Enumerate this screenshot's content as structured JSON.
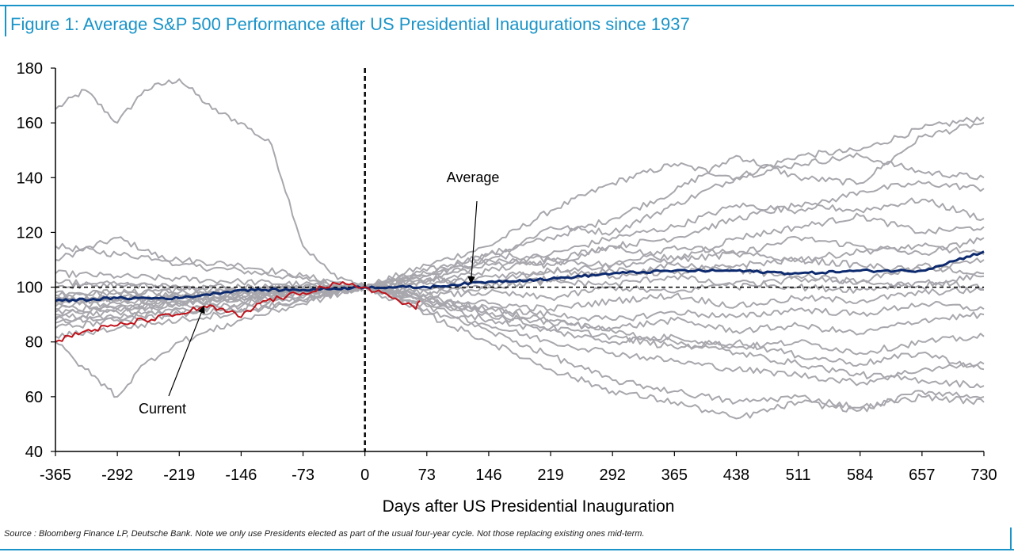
{
  "colors": {
    "accent": "#1a94c8",
    "history": "#a7a7ad",
    "average": "#0d2a6e",
    "current": "#c0131b",
    "axis": "#000000"
  },
  "chart_data": {
    "type": "line",
    "title": "Figure 1: Average S&P 500 Performance after US Presidential Inaugurations since 1937",
    "xlabel": "Days after US Presidential Inauguration",
    "ylabel": "",
    "xlim": [
      -365,
      730
    ],
    "ylim": [
      40,
      180
    ],
    "x_ticks": [
      -365,
      -292,
      -219,
      -146,
      -73,
      0,
      73,
      146,
      219,
      292,
      365,
      438,
      511,
      584,
      657,
      730
    ],
    "y_ticks": [
      40,
      60,
      80,
      100,
      120,
      140,
      160,
      180
    ],
    "reference_lines": [
      {
        "axis": "y",
        "value": 100,
        "style": "dashed"
      },
      {
        "axis": "x",
        "value": 0,
        "style": "dashed"
      }
    ],
    "annotations": [
      {
        "text": "Average",
        "points_to": [
          125,
          101.5
        ]
      },
      {
        "text": "Current",
        "points_to": [
          -190,
          93
        ]
      }
    ],
    "series": [
      {
        "name": "Average",
        "role": "average",
        "x": [
          -365,
          -292,
          -219,
          -146,
          -73,
          0,
          73,
          146,
          219,
          292,
          365,
          438,
          511,
          584,
          657,
          730
        ],
        "y": [
          95,
          96,
          96,
          99,
          99,
          100,
          100,
          102,
          103,
          105,
          106,
          106,
          105,
          106,
          106,
          113
        ]
      },
      {
        "name": "Current",
        "role": "current",
        "x": [
          -365,
          -330,
          -292,
          -260,
          -219,
          -190,
          -160,
          -146,
          -120,
          -100,
          -73,
          -50,
          -30,
          0,
          20,
          40,
          60,
          65
        ],
        "y": [
          80,
          84,
          86,
          88,
          90,
          93,
          91,
          89,
          95,
          96,
          98,
          100,
          101,
          100,
          98,
          95,
          92,
          95
        ]
      },
      {
        "role": "history",
        "x": [
          -365,
          -330,
          -292,
          -260,
          -219,
          -180,
          -146,
          -110,
          -73,
          -40,
          0
        ],
        "y": [
          165,
          172,
          160,
          172,
          176,
          165,
          160,
          152,
          115,
          105,
          100
        ]
      },
      {
        "role": "history",
        "x": [
          -365,
          -292,
          -219,
          -146,
          -73,
          0,
          73,
          146,
          219,
          292,
          365,
          438,
          511,
          584,
          657,
          730
        ],
        "y": [
          110,
          118,
          108,
          106,
          103,
          100,
          108,
          115,
          128,
          138,
          145,
          140,
          148,
          150,
          158,
          162
        ]
      },
      {
        "role": "history",
        "x": [
          -365,
          -292,
          -219,
          -146,
          -73,
          0,
          73,
          146,
          219,
          292,
          365,
          438,
          511,
          584,
          657,
          730
        ],
        "y": [
          115,
          112,
          110,
          108,
          104,
          100,
          106,
          112,
          118,
          125,
          135,
          148,
          140,
          138,
          155,
          160
        ]
      },
      {
        "role": "history",
        "x": [
          -365,
          -292,
          -219,
          -146,
          -73,
          0,
          73,
          146,
          219,
          292,
          365,
          438,
          511,
          584,
          657,
          730
        ],
        "y": [
          105,
          104,
          103,
          102,
          101,
          100,
          104,
          110,
          122,
          120,
          130,
          140,
          145,
          148,
          142,
          140
        ]
      },
      {
        "role": "history",
        "x": [
          -365,
          -292,
          -219,
          -146,
          -73,
          0,
          73,
          146,
          219,
          292,
          365,
          438,
          511,
          584,
          657,
          730
        ],
        "y": [
          95,
          96,
          97,
          98,
          99,
          100,
          103,
          108,
          112,
          118,
          122,
          130,
          128,
          135,
          138,
          136
        ]
      },
      {
        "role": "history",
        "x": [
          -365,
          -292,
          -219,
          -146,
          -73,
          0,
          73,
          146,
          219,
          292,
          365,
          438,
          511,
          584,
          657,
          730
        ],
        "y": [
          90,
          92,
          94,
          96,
          98,
          100,
          102,
          106,
          110,
          115,
          118,
          125,
          130,
          128,
          132,
          125
        ]
      },
      {
        "role": "history",
        "x": [
          -365,
          -292,
          -219,
          -146,
          -73,
          0,
          73,
          146,
          219,
          292,
          365,
          438,
          511,
          584,
          657,
          730
        ],
        "y": [
          100,
          101,
          100,
          99,
          100,
          100,
          104,
          110,
          108,
          115,
          110,
          118,
          122,
          126,
          120,
          122
        ]
      },
      {
        "role": "history",
        "x": [
          -365,
          -292,
          -219,
          -146,
          -73,
          0,
          73,
          146,
          219,
          292,
          365,
          438,
          511,
          584,
          657,
          730
        ],
        "y": [
          85,
          88,
          90,
          92,
          95,
          100,
          105,
          112,
          110,
          108,
          115,
          112,
          118,
          115,
          112,
          118
        ]
      },
      {
        "role": "history",
        "x": [
          -365,
          -292,
          -219,
          -146,
          -73,
          0,
          73,
          146,
          219,
          292,
          365,
          438,
          511,
          584,
          657,
          730
        ],
        "y": [
          92,
          93,
          95,
          96,
          98,
          100,
          101,
          104,
          106,
          108,
          110,
          112,
          110,
          113,
          115,
          112
        ]
      },
      {
        "role": "history",
        "x": [
          -365,
          -292,
          -219,
          -146,
          -73,
          0,
          73,
          146,
          219,
          292,
          365,
          438,
          511,
          584,
          657,
          730
        ],
        "y": [
          88,
          89,
          91,
          93,
          96,
          100,
          99,
          101,
          103,
          106,
          105,
          108,
          110,
          108,
          106,
          110
        ]
      },
      {
        "role": "history",
        "x": [
          -365,
          -292,
          -219,
          -146,
          -73,
          0,
          73,
          146,
          219,
          292,
          365,
          438,
          511,
          584,
          657,
          730
        ],
        "y": [
          96,
          95,
          97,
          98,
          99,
          100,
          98,
          100,
          102,
          101,
          104,
          100,
          103,
          102,
          100,
          105
        ]
      },
      {
        "role": "history",
        "x": [
          -365,
          -292,
          -219,
          -146,
          -73,
          0,
          73,
          146,
          219,
          292,
          365,
          438,
          511,
          584,
          657,
          730
        ],
        "y": [
          94,
          96,
          95,
          97,
          99,
          100,
          97,
          98,
          96,
          100,
          98,
          102,
          100,
          99,
          102,
          100
        ]
      },
      {
        "role": "history",
        "x": [
          -365,
          -292,
          -219,
          -146,
          -73,
          0,
          73,
          146,
          219,
          292,
          365,
          438,
          511,
          584,
          657,
          730
        ],
        "y": [
          87,
          89,
          92,
          94,
          97,
          100,
          96,
          94,
          92,
          95,
          97,
          93,
          96,
          95,
          98,
          99
        ]
      },
      {
        "role": "history",
        "x": [
          -365,
          -292,
          -219,
          -146,
          -73,
          0,
          73,
          146,
          219,
          292,
          365,
          438,
          511,
          584,
          657,
          730
        ],
        "y": [
          82,
          85,
          88,
          91,
          95,
          100,
          95,
          92,
          90,
          88,
          91,
          89,
          92,
          90,
          94,
          92
        ]
      },
      {
        "role": "history",
        "x": [
          -365,
          -292,
          -219,
          -146,
          -73,
          0,
          73,
          146,
          219,
          292,
          365,
          438,
          511,
          584,
          657,
          730
        ],
        "y": [
          97,
          98,
          98,
          99,
          99,
          100,
          96,
          90,
          87,
          85,
          88,
          84,
          86,
          83,
          88,
          90
        ]
      },
      {
        "role": "history",
        "x": [
          -365,
          -292,
          -219,
          -146,
          -73,
          0,
          73,
          146,
          219,
          292,
          365,
          438,
          511,
          584,
          657,
          730
        ],
        "y": [
          93,
          94,
          96,
          97,
          99,
          100,
          94,
          88,
          84,
          80,
          82,
          78,
          80,
          76,
          80,
          82
        ]
      },
      {
        "role": "history",
        "x": [
          -365,
          -292,
          -219,
          -146,
          -73,
          0,
          73,
          146,
          219,
          292,
          365,
          438,
          511,
          584,
          657,
          730
        ],
        "y": [
          89,
          91,
          93,
          95,
          98,
          100,
          95,
          90,
          85,
          82,
          78,
          80,
          75,
          72,
          76,
          70
        ]
      },
      {
        "role": "history",
        "x": [
          -365,
          -292,
          -219,
          -146,
          -73,
          0,
          73,
          146,
          219,
          292,
          365,
          438,
          511,
          584,
          657,
          730
        ],
        "y": [
          91,
          92,
          94,
          96,
          98,
          100,
          93,
          86,
          80,
          76,
          73,
          70,
          68,
          65,
          70,
          72
        ]
      },
      {
        "role": "history",
        "x": [
          -365,
          -292,
          -219,
          -146,
          -73,
          0,
          73,
          146,
          219,
          292,
          365,
          438,
          511,
          584,
          657,
          730
        ],
        "y": [
          95,
          96,
          97,
          98,
          99,
          100,
          92,
          84,
          75,
          66,
          62,
          58,
          60,
          56,
          60,
          58
        ]
      },
      {
        "role": "history",
        "x": [
          -365,
          -292,
          -219,
          -146,
          -73,
          0,
          73,
          146,
          219,
          292,
          365,
          438,
          511,
          584,
          657,
          730
        ],
        "y": [
          98,
          98,
          99,
          99,
          100,
          100,
          90,
          80,
          70,
          62,
          58,
          52,
          58,
          55,
          62,
          60
        ]
      },
      {
        "role": "history",
        "x": [
          -365,
          -330,
          -292,
          -260,
          -219,
          -146,
          -73,
          0,
          73,
          146,
          219,
          292,
          365,
          438,
          511,
          584,
          657,
          730
        ],
        "y": [
          80,
          70,
          60,
          72,
          80,
          88,
          94,
          100,
          96,
          92,
          88,
          84,
          80,
          76,
          72,
          68,
          66,
          64
        ]
      },
      {
        "role": "history",
        "x": [
          -365,
          -292,
          -219,
          -146,
          -73,
          0,
          73,
          146,
          219,
          292,
          365,
          438,
          511,
          584,
          657,
          730
        ],
        "y": [
          102,
          101,
          100,
          100,
          100,
          100,
          103,
          102,
          106,
          104,
          108,
          106,
          104,
          102,
          108,
          104
        ]
      }
    ]
  }
}
